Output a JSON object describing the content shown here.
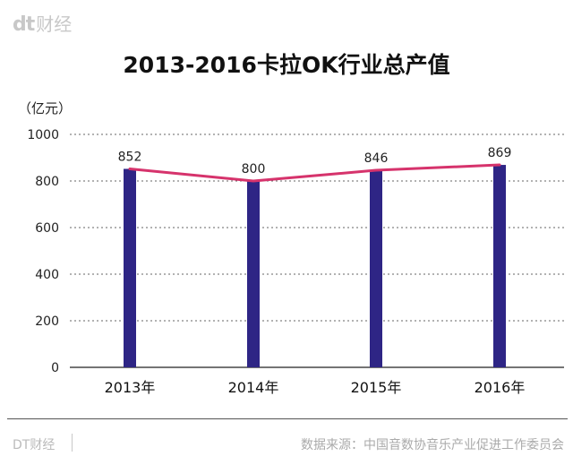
{
  "header": {
    "logo_mark": "dt",
    "logo_text": "财经"
  },
  "chart_data": {
    "type": "bar",
    "title": "2013-2016卡拉OK行业总产值",
    "ylabel": "（亿元）",
    "xlabel": "",
    "categories": [
      "2013年",
      "2014年",
      "2015年",
      "2016年"
    ],
    "values": [
      852,
      800,
      846,
      869
    ],
    "data_labels": [
      "852",
      "800",
      "846",
      "869"
    ],
    "line_overlay": true,
    "ylim": [
      0,
      1000
    ],
    "yticks": [
      0,
      200,
      400,
      600,
      800,
      1000
    ],
    "ytick_labels": [
      "0",
      "200",
      "400",
      "600",
      "800",
      "1000"
    ],
    "grid": true,
    "bar_color": "#2e2585",
    "line_color": "#d6336c"
  },
  "footer": {
    "brand": "DT财经",
    "source": "数据来源：中国音数协音乐产业促进工作委员会"
  }
}
